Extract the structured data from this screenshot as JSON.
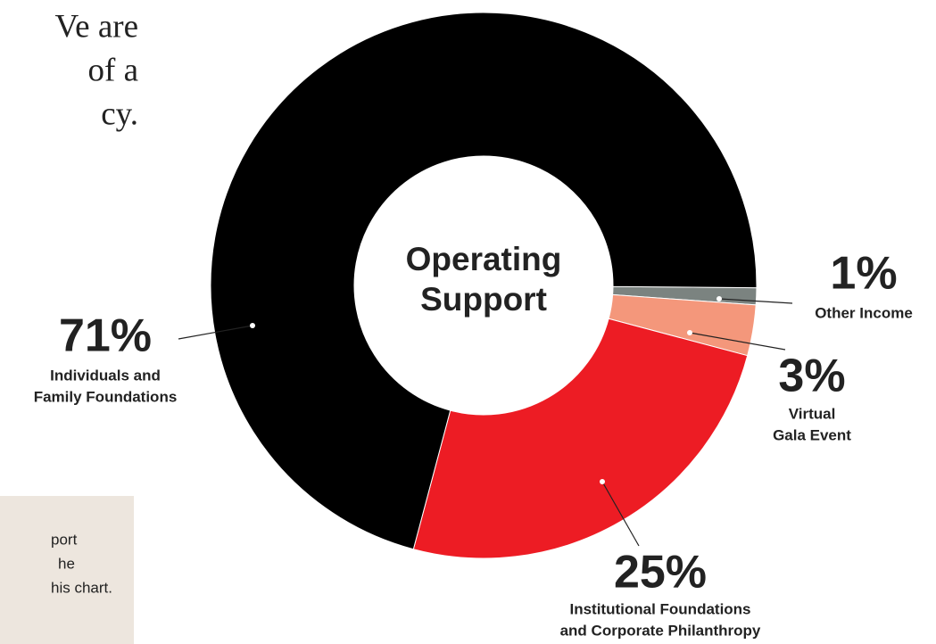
{
  "chart_data": {
    "type": "donut",
    "center_label": [
      "Operating",
      "Support"
    ],
    "categories": [
      [
        "Other Income"
      ],
      [
        "Virtual",
        "Gala Event"
      ],
      [
        "Institutional Foundations",
        "and Corporate Philanthropy"
      ],
      [
        "Individuals and",
        "Family Foundations"
      ]
    ],
    "values": [
      1,
      3,
      25,
      71
    ],
    "value_labels": [
      "1%",
      "3%",
      "25%",
      "71%"
    ],
    "colors": [
      "#7b8380",
      "#f4977b",
      "#ed1c24",
      "#000000"
    ]
  },
  "side_text": [
    "Ve are",
    "of a",
    "cy."
  ],
  "note_box": [
    "port",
    "he",
    "his chart."
  ]
}
